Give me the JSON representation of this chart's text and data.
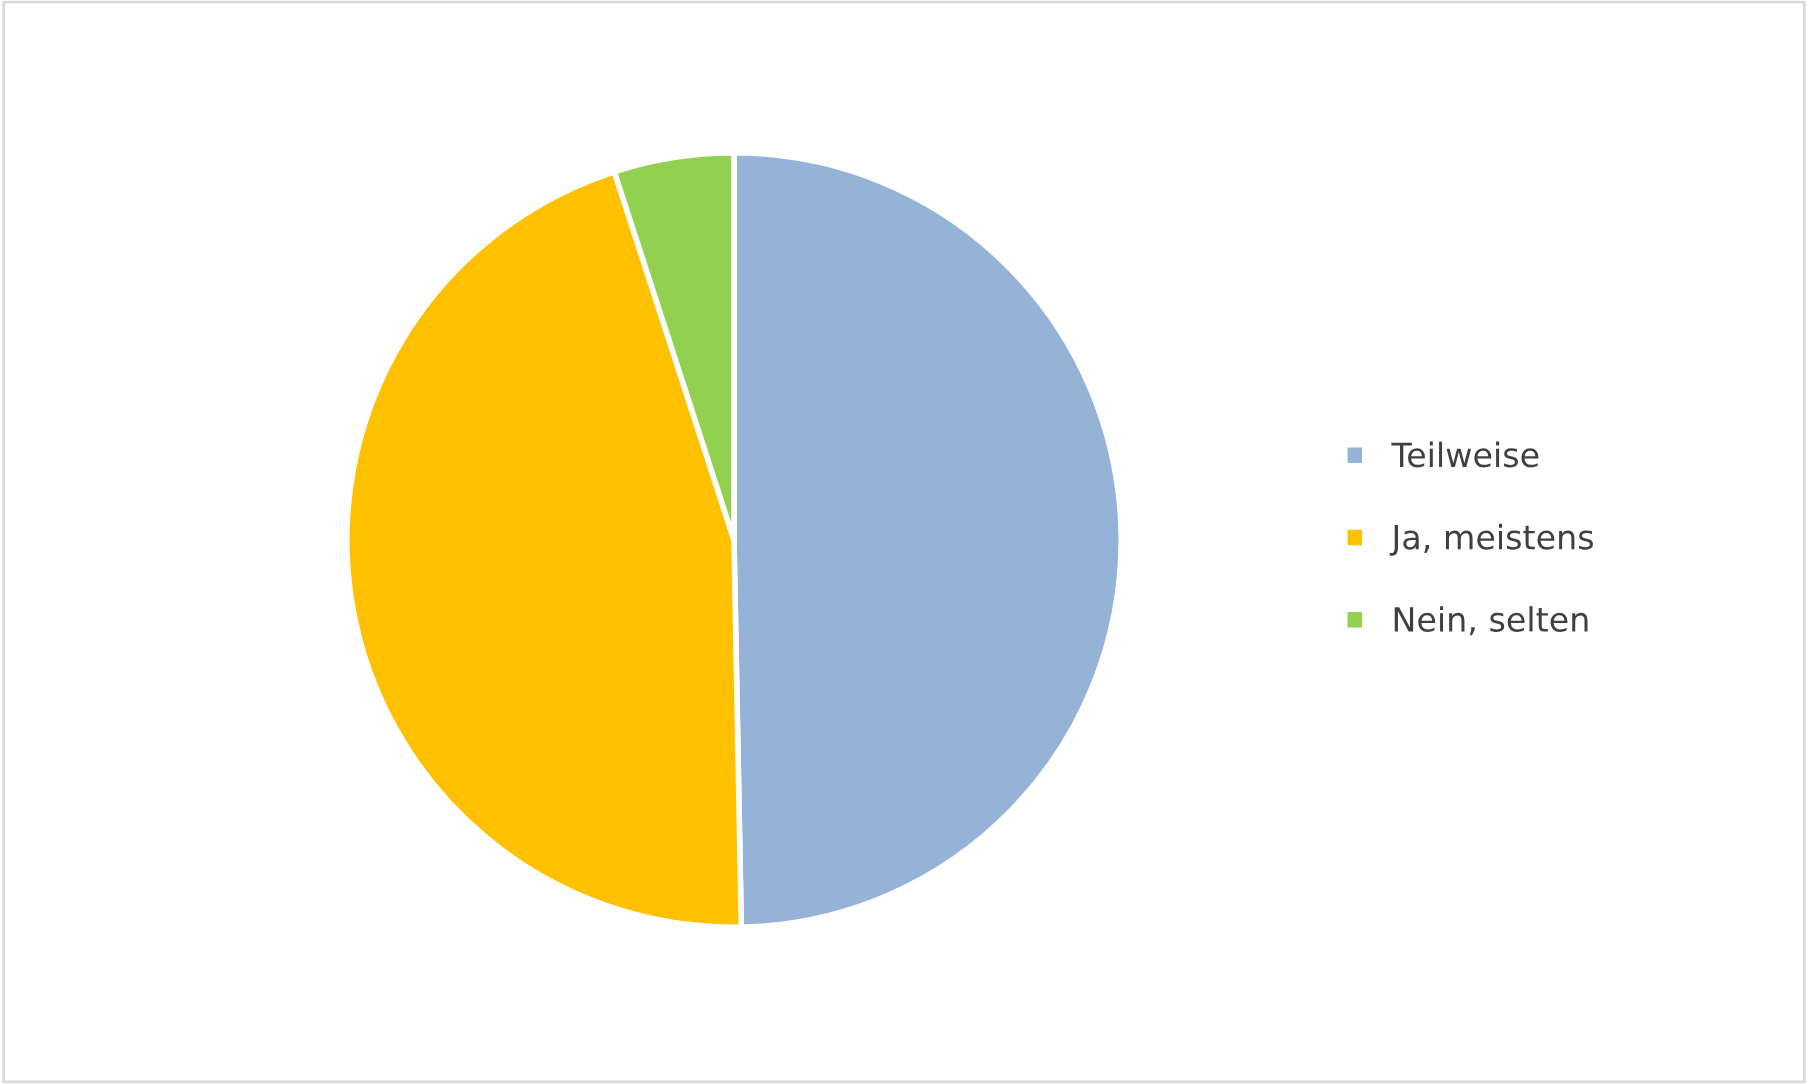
{
  "chart_data": {
    "type": "pie",
    "categories": [
      "Teilweise",
      "Ja, meistens",
      "Nein, selten"
    ],
    "values": [
      49.7,
      45.3,
      5.0
    ],
    "colors": [
      "#95b3d7",
      "#ffc000",
      "#92d050"
    ],
    "legend": "right"
  }
}
